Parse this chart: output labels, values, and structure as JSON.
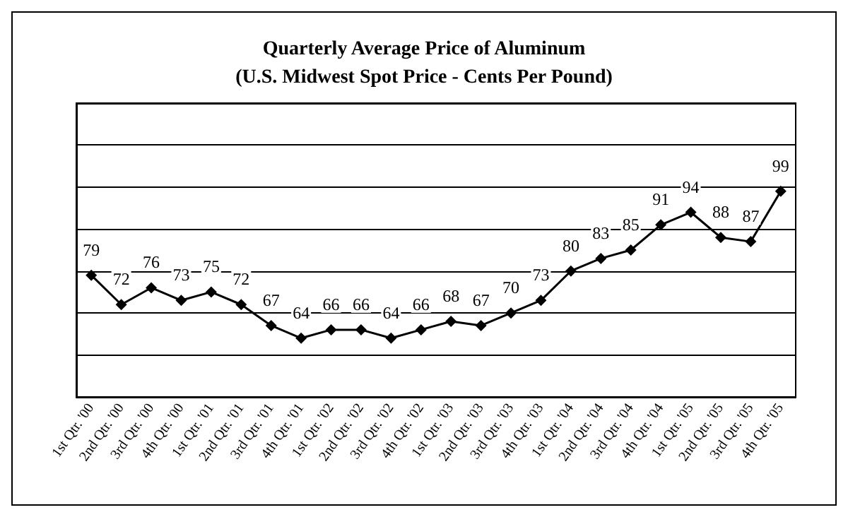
{
  "chart_data": {
    "type": "line",
    "title": "Quarterly Average Price of Aluminum",
    "subtitle": "(U.S. Midwest Spot Price - Cents Per Pound)",
    "categories": [
      "1st Qtr. '00",
      "2nd Qtr. '00",
      "3rd Qtr. '00",
      "4th Qtr. '00",
      "1st Qtr. '01",
      "2nd Qtr. '01",
      "3rd Qtr. '01",
      "4th Qtr. '01",
      "1st Qtr. '02",
      "2nd Qtr. '02",
      "3rd Qtr. '02",
      "4th Qtr. '02",
      "1st Qtr. '03",
      "2nd Qtr. '03",
      "3rd Qtr. '03",
      "4th Qtr. '03",
      "1st Qtr. '04",
      "2nd Qtr. '04",
      "3rd Qtr. '04",
      "4th Qtr. '04",
      "1st Qtr. '05",
      "2nd Qtr. '05",
      "3rd Qtr. '05",
      "4th Qtr. '05"
    ],
    "values": [
      79,
      72,
      76,
      73,
      75,
      72,
      67,
      64,
      66,
      66,
      64,
      66,
      68,
      67,
      70,
      73,
      80,
      83,
      85,
      91,
      94,
      88,
      87,
      99
    ],
    "color": "#000000",
    "ylim": [
      50,
      120
    ],
    "yticks": [
      {
        "value": 50,
        "label": null
      },
      {
        "value": 60,
        "label": null
      },
      {
        "value": 70,
        "label": null
      },
      {
        "value": 80,
        "label": null
      },
      {
        "value": 90,
        "label": null
      },
      {
        "value": 100,
        "label": null
      },
      {
        "value": 110,
        "label": null
      },
      {
        "value": 120,
        "label": null
      }
    ],
    "tick_labels": "x",
    "grid": "y",
    "marker": "diamond",
    "line_style": "solid",
    "data_labels": true
  }
}
